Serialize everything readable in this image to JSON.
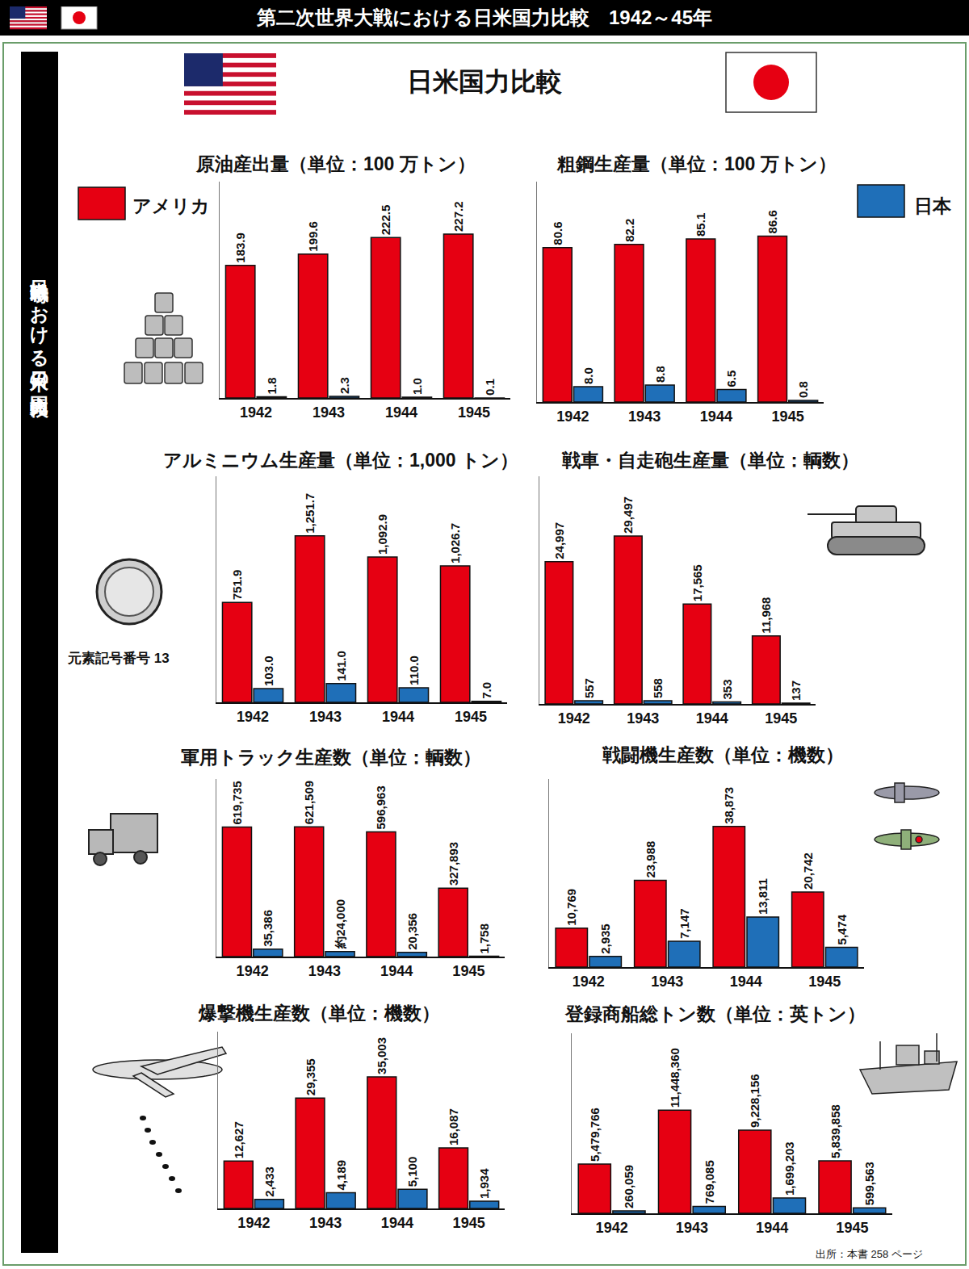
{
  "header": {
    "title": "第二次世界大戦における日米国力比較　1942～45年"
  },
  "side_label": "日米戦争時における日米の国力比較",
  "heading": "日米国力比較",
  "caption": "元素記号番号 13",
  "source": "出所：本書 258 ページ",
  "chart_data": [
    {
      "type": "bar",
      "title": "原油産出量（単位：100 万トン）",
      "categories": [
        "1942",
        "1943",
        "1944",
        "1945"
      ],
      "series": [
        {
          "name": "アメリカ",
          "color": "#e60012",
          "values": [
            183.9,
            199.6,
            222.5,
            227.2
          ],
          "value_labels": [
            "183.9",
            "199.6",
            "222.5",
            "227.2"
          ]
        },
        {
          "name": "日本",
          "color": "#1f6fb8",
          "values": [
            1.8,
            2.3,
            1.0,
            0.1
          ],
          "value_labels": [
            "1.8",
            "2.3",
            "1.0",
            "0.1"
          ]
        }
      ],
      "ylim": [
        0,
        300
      ],
      "tick_labels": "x",
      "grid": false,
      "data_labels": true
    },
    {
      "type": "bar",
      "title": "粗鋼生産量（単位：100 万トン）",
      "categories": [
        "1942",
        "1943",
        "1944",
        "1945"
      ],
      "series": [
        {
          "name": "アメリカ",
          "color": "#e60012",
          "values": [
            80.6,
            82.2,
            85.1,
            86.6
          ],
          "value_labels": [
            "80.6",
            "82.2",
            "85.1",
            "86.6"
          ]
        },
        {
          "name": "日本",
          "color": "#1f6fb8",
          "values": [
            8.0,
            8.8,
            6.5,
            0.8
          ],
          "value_labels": [
            "8.0",
            "8.8",
            "6.5",
            "0.8"
          ]
        }
      ],
      "ylim": [
        0,
        115
      ],
      "tick_labels": "x",
      "grid": false,
      "data_labels": true
    },
    {
      "type": "bar",
      "title": "アルミニウム生産量（単位：1,000 トン）",
      "categories": [
        "1942",
        "1943",
        "1944",
        "1945"
      ],
      "series": [
        {
          "name": "アメリカ",
          "color": "#e60012",
          "values": [
            751.9,
            1251.7,
            1092.9,
            1026.7
          ],
          "value_labels": [
            "751.9",
            "1,251.7",
            "1,092.9",
            "1,026.7"
          ]
        },
        {
          "name": "日本",
          "color": "#1f6fb8",
          "values": [
            103.0,
            141.0,
            110.0,
            7.0
          ],
          "value_labels": [
            "103.0",
            "141.0",
            "110.0",
            "7.0"
          ]
        }
      ],
      "ylim": [
        0,
        1700
      ],
      "tick_labels": "x",
      "grid": false,
      "data_labels": true
    },
    {
      "type": "bar",
      "title": "戦車・自走砲生産量（単位：輌数）",
      "categories": [
        "1942",
        "1943",
        "1944",
        "1945"
      ],
      "series": [
        {
          "name": "アメリカ",
          "color": "#e60012",
          "values": [
            24997,
            29497,
            17565,
            11968
          ],
          "value_labels": [
            "24,997",
            "29,497",
            "17,565",
            "11,968"
          ]
        },
        {
          "name": "日本",
          "color": "#1f6fb8",
          "values": [
            557,
            558,
            353,
            137
          ],
          "value_labels": [
            "557",
            "558",
            "353",
            "137"
          ]
        }
      ],
      "ylim": [
        0,
        40000
      ],
      "tick_labels": "x",
      "grid": false,
      "data_labels": true
    },
    {
      "type": "bar",
      "title": "軍用トラック生産数（単位：輌数）",
      "categories": [
        "1942",
        "1943",
        "1944",
        "1945"
      ],
      "series": [
        {
          "name": "アメリカ",
          "color": "#e60012",
          "values": [
            619735,
            621509,
            596963,
            327893
          ],
          "value_labels": [
            "619,735",
            "621,509",
            "596,963",
            "327,893"
          ]
        },
        {
          "name": "日本",
          "color": "#1f6fb8",
          "values": [
            35386,
            24000,
            20356,
            1758
          ],
          "value_labels": [
            "35,386",
            "約24,000",
            "20,356",
            "1,758"
          ]
        }
      ],
      "ylim": [
        0,
        850000
      ],
      "tick_labels": "x",
      "grid": false,
      "data_labels": true
    },
    {
      "type": "bar",
      "title": "戦闘機生産数（単位：機数）",
      "categories": [
        "1942",
        "1943",
        "1944",
        "1945"
      ],
      "series": [
        {
          "name": "アメリカ",
          "color": "#e60012",
          "values": [
            10769,
            23988,
            38873,
            20742
          ],
          "value_labels": [
            "10,769",
            "23,988",
            "38,873",
            "20,742"
          ]
        },
        {
          "name": "日本",
          "color": "#1f6fb8",
          "values": [
            2935,
            7147,
            13811,
            5474
          ],
          "value_labels": [
            "2,935",
            "7,147",
            "13,811",
            "5,474"
          ]
        }
      ],
      "ylim": [
        0,
        52000
      ],
      "tick_labels": "x",
      "grid": false,
      "data_labels": true
    },
    {
      "type": "bar",
      "title": "爆撃機生産数（単位：機数）",
      "categories": [
        "1942",
        "1943",
        "1944",
        "1945"
      ],
      "series": [
        {
          "name": "アメリカ",
          "color": "#e60012",
          "values": [
            12627,
            29355,
            35003,
            16087
          ],
          "value_labels": [
            "12,627",
            "29,355",
            "35,003",
            "16,087"
          ]
        },
        {
          "name": "日本",
          "color": "#1f6fb8",
          "values": [
            2433,
            4189,
            5100,
            1934
          ],
          "value_labels": [
            "2,433",
            "4,189",
            "5,100",
            "1,934"
          ]
        }
      ],
      "ylim": [
        0,
        47000
      ],
      "tick_labels": "x",
      "grid": false,
      "data_labels": true
    },
    {
      "type": "bar",
      "title": "登録商船総トン数（単位：英トン）",
      "categories": [
        "1942",
        "1943",
        "1944",
        "1945"
      ],
      "series": [
        {
          "name": "アメリカ",
          "color": "#e60012",
          "values": [
            5479766,
            11448360,
            9228156,
            5839858
          ],
          "value_labels": [
            "5,479,766",
            "11,448,360",
            "9,228,156",
            "5,839,858"
          ]
        },
        {
          "name": "日本",
          "color": "#1f6fb8",
          "values": [
            260059,
            769085,
            1699203,
            599563
          ],
          "value_labels": [
            "260,059",
            "769,085",
            "1,699,203",
            "599,563"
          ]
        }
      ],
      "ylim": [
        0,
        20000000
      ],
      "tick_labels": "x",
      "grid": false,
      "data_labels": true
    }
  ]
}
